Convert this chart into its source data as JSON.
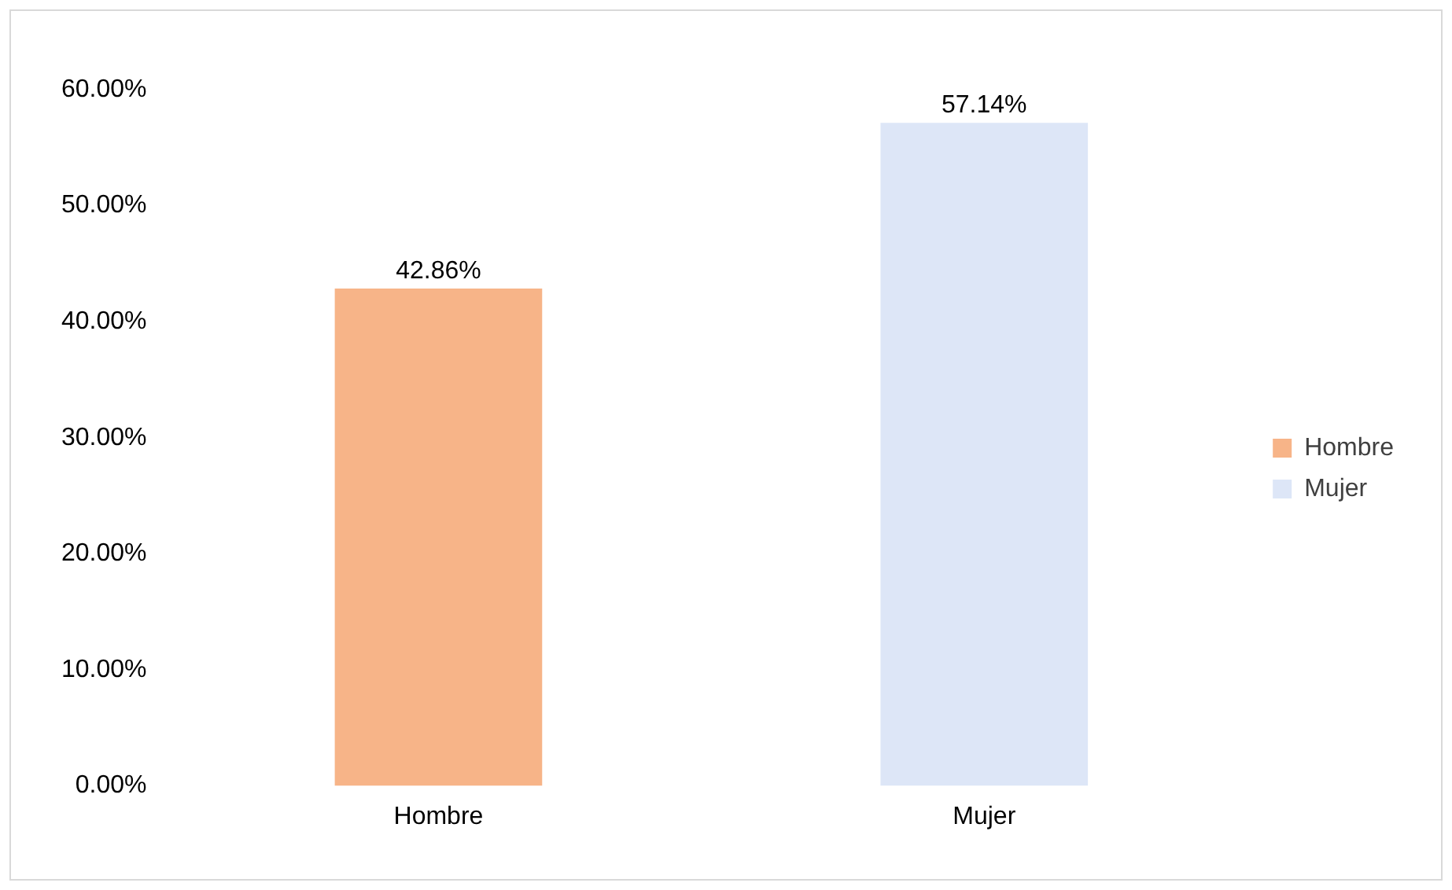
{
  "chart_data": {
    "type": "bar",
    "categories": [
      "Hombre",
      "Mujer"
    ],
    "series": [
      {
        "name": "Hombre",
        "color": "#f7b488",
        "values": [
          42.86,
          null
        ],
        "value_labels": [
          "42.86%",
          null
        ]
      },
      {
        "name": "Mujer",
        "color": "#dde6f7",
        "values": [
          null,
          57.14
        ],
        "value_labels": [
          null,
          "57.14%"
        ]
      }
    ],
    "ylim": [
      0,
      60
    ],
    "yticks": [
      {
        "value": 0,
        "label": "0.00%"
      },
      {
        "value": 10,
        "label": "10.00%"
      },
      {
        "value": 20,
        "label": "20.00%"
      },
      {
        "value": 30,
        "label": "30.00%"
      },
      {
        "value": 40,
        "label": "40.00%"
      },
      {
        "value": 50,
        "label": "50.00%"
      },
      {
        "value": 60,
        "label": "60.00%"
      }
    ],
    "grid": false,
    "legend": "right"
  }
}
